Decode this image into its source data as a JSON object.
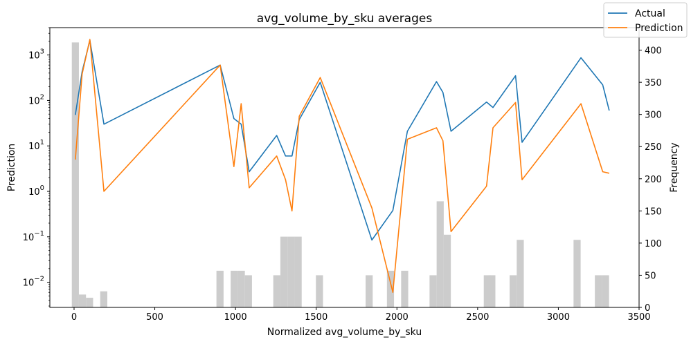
{
  "chart_data": {
    "type": "line",
    "title": "avg_volume_by_sku averages",
    "xlabel": "Normalized avg_volume_by_sku",
    "ylabel": "Prediction",
    "y2label": "Frequency",
    "xlim": [
      -150,
      3500
    ],
    "ylim": [
      0.0028,
      4000
    ],
    "y_scale": "log",
    "y2lim": [
      0,
      435
    ],
    "x_ticks": [
      0,
      500,
      1000,
      1500,
      2000,
      2500,
      3000,
      3500
    ],
    "y_ticks": [
      {
        "value": 0.01,
        "base": "10",
        "exp": "−2"
      },
      {
        "value": 0.1,
        "base": "10",
        "exp": "−1"
      },
      {
        "value": 1,
        "base": "10",
        "exp": "0"
      },
      {
        "value": 10,
        "base": "10",
        "exp": "1"
      },
      {
        "value": 100,
        "base": "10",
        "exp": "2"
      },
      {
        "value": 1000,
        "base": "10",
        "exp": "3"
      }
    ],
    "y2_ticks": [
      0,
      50,
      100,
      150,
      200,
      250,
      300,
      350,
      400
    ],
    "legend_position": "top-right",
    "series": [
      {
        "name": "Actual",
        "color": "#1f77b4",
        "x": [
          8,
          50,
          98,
          185,
          905,
          990,
          1035,
          1085,
          1255,
          1310,
          1350,
          1395,
          1525,
          1845,
          1975,
          2065,
          2245,
          2285,
          2335,
          2555,
          2595,
          2735,
          2775,
          3140,
          3275,
          3315
        ],
        "y": [
          48,
          430,
          2100,
          30,
          600,
          40,
          30,
          2.7,
          17,
          6,
          6,
          38,
          250,
          0.085,
          0.38,
          21,
          260,
          150,
          21,
          92,
          70,
          350,
          12,
          870,
          220,
          60
        ]
      },
      {
        "name": "Prediction",
        "color": "#ff7f0e",
        "x": [
          8,
          50,
          98,
          185,
          905,
          990,
          1035,
          1085,
          1255,
          1310,
          1350,
          1395,
          1525,
          1845,
          1975,
          2065,
          2245,
          2285,
          2335,
          2555,
          2595,
          2735,
          2775,
          3140,
          3275,
          3315
        ],
        "y": [
          5,
          380,
          2200,
          1,
          600,
          3.5,
          85,
          1.2,
          6,
          1.8,
          0.37,
          45,
          320,
          0.43,
          0.006,
          14,
          25,
          13,
          0.13,
          1.3,
          25,
          90,
          1.8,
          85,
          2.7,
          2.5
        ]
      }
    ],
    "histogram": {
      "name": "Frequency",
      "color": "#cccccc",
      "bin_width": 44,
      "bins": [
        {
          "x": 8,
          "count": 412
        },
        {
          "x": 52,
          "count": 20
        },
        {
          "x": 96,
          "count": 15
        },
        {
          "x": 184,
          "count": 25
        },
        {
          "x": 904,
          "count": 57
        },
        {
          "x": 992,
          "count": 57
        },
        {
          "x": 1036,
          "count": 57
        },
        {
          "x": 1080,
          "count": 50
        },
        {
          "x": 1256,
          "count": 50
        },
        {
          "x": 1300,
          "count": 110
        },
        {
          "x": 1344,
          "count": 110
        },
        {
          "x": 1388,
          "count": 110
        },
        {
          "x": 1520,
          "count": 50
        },
        {
          "x": 1828,
          "count": 50
        },
        {
          "x": 1960,
          "count": 57
        },
        {
          "x": 2048,
          "count": 57
        },
        {
          "x": 2224,
          "count": 50
        },
        {
          "x": 2268,
          "count": 165
        },
        {
          "x": 2312,
          "count": 113
        },
        {
          "x": 2560,
          "count": 50
        },
        {
          "x": 2588,
          "count": 50
        },
        {
          "x": 2720,
          "count": 50
        },
        {
          "x": 2764,
          "count": 105
        },
        {
          "x": 3116,
          "count": 105
        },
        {
          "x": 3248,
          "count": 50
        },
        {
          "x": 3292,
          "count": 50
        }
      ]
    }
  }
}
